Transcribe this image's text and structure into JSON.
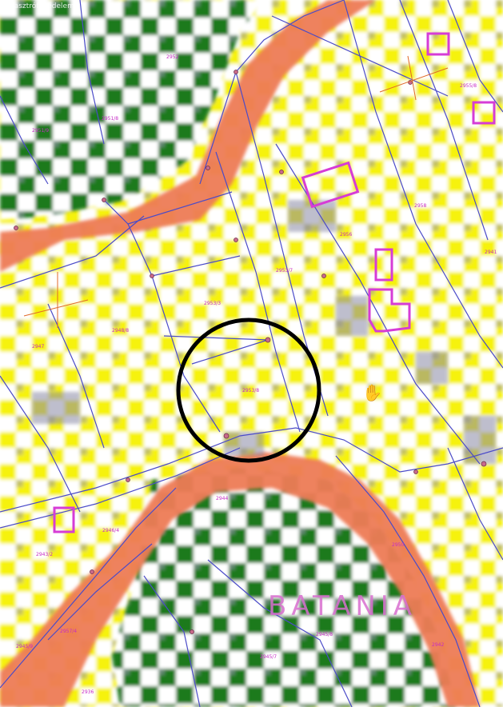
{
  "map": {
    "header_text": "Katasztrófavédelem",
    "place_name": "BATANIA",
    "parcel_labels": [
      {
        "id": "p1",
        "text": "2951/9"
      },
      {
        "id": "p2",
        "text": "2951/8"
      },
      {
        "id": "p3",
        "text": "2952"
      },
      {
        "id": "p4",
        "text": "2953/7"
      },
      {
        "id": "p5",
        "text": "2953/3"
      },
      {
        "id": "p6",
        "text": "2948/8"
      },
      {
        "id": "p7",
        "text": "2947"
      },
      {
        "id": "p8",
        "text": "2953/8"
      },
      {
        "id": "p9",
        "text": "2958"
      },
      {
        "id": "p10",
        "text": "2956"
      },
      {
        "id": "p11",
        "text": "2955/8"
      },
      {
        "id": "p12",
        "text": "2941"
      },
      {
        "id": "p13",
        "text": "2946/4"
      },
      {
        "id": "p14",
        "text": "2944"
      },
      {
        "id": "p15",
        "text": "2943/2"
      },
      {
        "id": "p16",
        "text": "2950"
      },
      {
        "id": "p17",
        "text": "2945/8"
      },
      {
        "id": "p18",
        "text": "2945/7"
      },
      {
        "id": "p19",
        "text": "2942"
      },
      {
        "id": "p20",
        "text": "2945/9"
      },
      {
        "id": "p21",
        "text": "2936"
      },
      {
        "id": "p22",
        "text": "2957/4"
      }
    ],
    "highlight_circle": "black circle marking parcel 2953/8",
    "colors": {
      "residential_yellow": "#f6f20c",
      "forest_green": "#1f7a1f",
      "road_orange": "#ee7b57",
      "parcel_line_blue": "#4b4bc8",
      "building_magenta": "#d63cd6",
      "shadow_gray": "#8f8fa8"
    },
    "icons": [
      "hand-cursor-icon",
      "north-arrow-icon"
    ]
  }
}
